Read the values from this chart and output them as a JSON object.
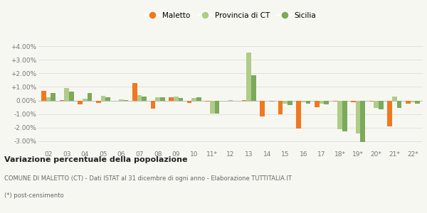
{
  "categories": [
    "02",
    "03",
    "04",
    "05",
    "06",
    "07",
    "08",
    "09",
    "10",
    "11*",
    "12",
    "13",
    "14",
    "15",
    "16",
    "17",
    "18*",
    "19*",
    "20*",
    "21*",
    "22*"
  ],
  "maletto": [
    0.72,
    0.03,
    -0.27,
    -0.2,
    -0.04,
    1.28,
    -0.6,
    0.25,
    -0.18,
    -0.06,
    -0.04,
    0.03,
    -1.18,
    -1.0,
    -2.05,
    -0.52,
    -0.1,
    -0.15,
    -0.1,
    -1.9,
    -0.22
  ],
  "provincia_ct": [
    0.22,
    0.92,
    0.12,
    0.35,
    0.07,
    0.42,
    0.25,
    0.28,
    0.18,
    -0.97,
    0.05,
    3.55,
    -0.05,
    -0.25,
    -0.15,
    -0.25,
    -2.15,
    -2.45,
    -0.55,
    0.28,
    -0.12
  ],
  "sicilia": [
    0.55,
    0.68,
    0.55,
    0.22,
    0.05,
    0.3,
    0.22,
    0.2,
    0.22,
    -0.97,
    -0.05,
    1.88,
    -0.08,
    -0.35,
    -0.22,
    -0.3,
    -2.3,
    -3.1,
    -0.68,
    -0.55,
    -0.22
  ],
  "color_maletto": "#f07820",
  "color_provincia": "#b0cc88",
  "color_sicilia": "#7aaa5a",
  "ylim": [
    -3.6,
    4.6
  ],
  "yticks": [
    -3.0,
    -2.0,
    -1.0,
    0.0,
    1.0,
    2.0,
    3.0,
    4.0
  ],
  "ytick_labels": [
    "-3.00%",
    "-2.00%",
    "-1.00%",
    "0.00%",
    "+1.00%",
    "+2.00%",
    "+3.00%",
    "+4.00%"
  ],
  "title": "Variazione percentuale della popolazione",
  "footnote1": "COMUNE DI MALETTO (CT) - Dati ISTAT al 31 dicembre di ogni anno - Elaborazione TUTTITALIA.IT",
  "footnote2": "(*) post-censimento",
  "legend_labels": [
    "Maletto",
    "Provincia di CT",
    "Sicilia"
  ],
  "bg_color": "#f7f7f2",
  "grid_color": "#e0e0e0",
  "bar_width": 0.26
}
